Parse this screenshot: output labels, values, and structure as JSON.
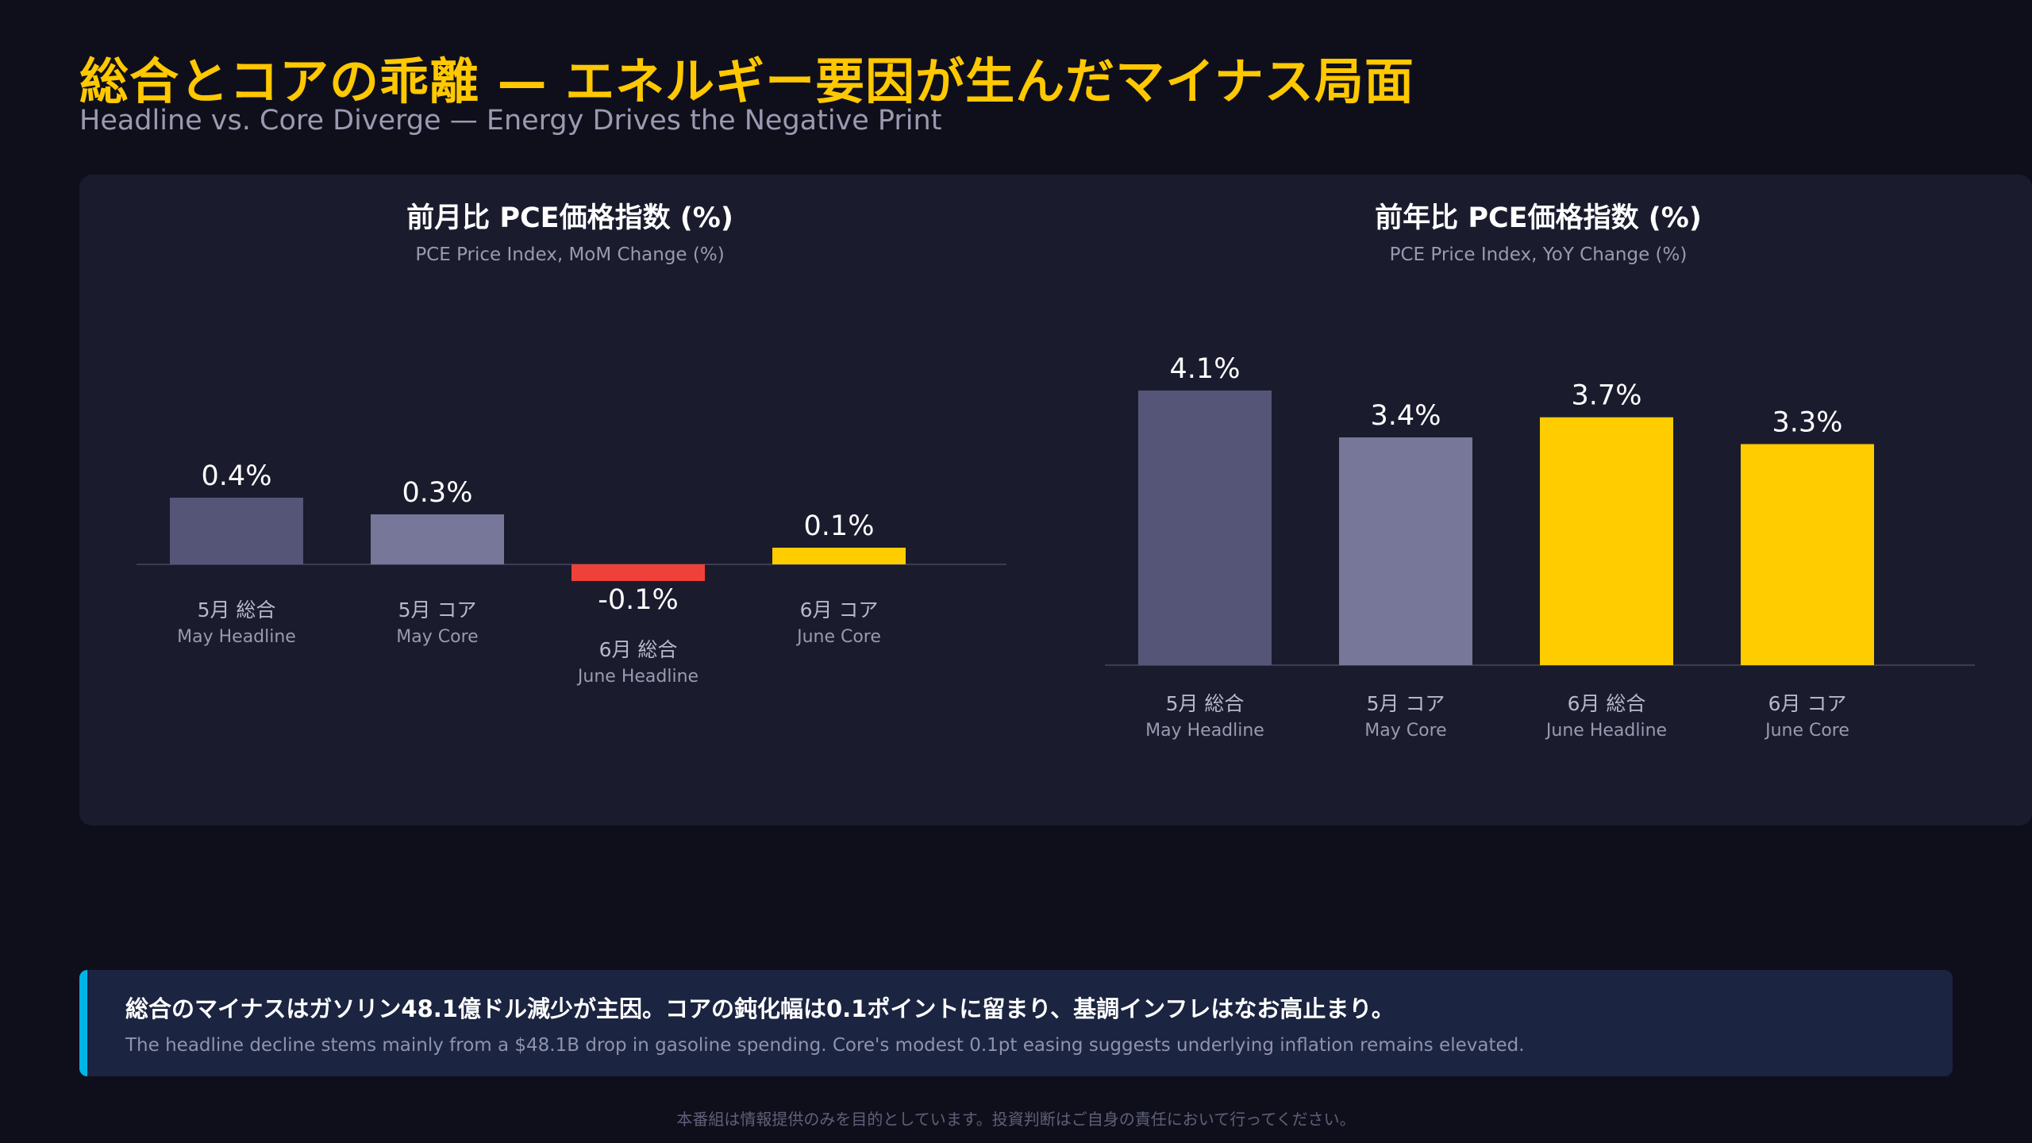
{
  "header": {
    "title": "総合とコアの乖離 — エネルギー要因が生んだマイナス局面",
    "subtitle": "Headline vs. Core Diverge — Energy Drives the Negative Print"
  },
  "chart_data": [
    {
      "type": "bar",
      "title": "前月比 PCE価格指数 (%)",
      "subtitle": "PCE Price Index, MoM Change (%)",
      "categories": [
        "5月 総合",
        "5月 コア",
        "6月 総合",
        "6月 コア"
      ],
      "categories_en": [
        "May Headline",
        "May Core",
        "June Headline",
        "June Core"
      ],
      "values": [
        0.4,
        0.3,
        -0.1,
        0.1
      ],
      "value_labels": [
        "0.4%",
        "0.3%",
        "-0.1%",
        "0.1%"
      ],
      "colors": [
        "#555577",
        "#777799",
        "#f0403a",
        "#ffcc00"
      ],
      "ylim": [
        -0.1,
        0.4
      ],
      "grid": false
    },
    {
      "type": "bar",
      "title": "前年比 PCE価格指数 (%)",
      "subtitle": "PCE Price Index, YoY Change (%)",
      "categories": [
        "5月 総合",
        "5月 コア",
        "6月 総合",
        "6月 コア"
      ],
      "categories_en": [
        "May Headline",
        "May Core",
        "June Headline",
        "June Core"
      ],
      "values": [
        4.1,
        3.4,
        3.7,
        3.3
      ],
      "value_labels": [
        "4.1%",
        "3.4%",
        "3.7%",
        "3.3%"
      ],
      "colors": [
        "#555577",
        "#777799",
        "#ffcc00",
        "#ffcc00"
      ],
      "ylim": [
        0,
        4.1
      ],
      "grid": false
    }
  ],
  "note": {
    "jp": "総合のマイナスはガソリン48.1億ドル減少が主因。コアの鈍化幅は0.1ポイントに留まり、基調インフレはなお高止まり。",
    "en": "The headline decline stems mainly from a $48.1B drop in gasoline spending. Core's modest 0.1pt easing suggests underlying inflation remains elevated.",
    "accent": "#00b4e6"
  },
  "footer": {
    "disclaimer": "本番組は情報提供のみを目的としています。投資判断はご自身の責任において行ってください。"
  }
}
